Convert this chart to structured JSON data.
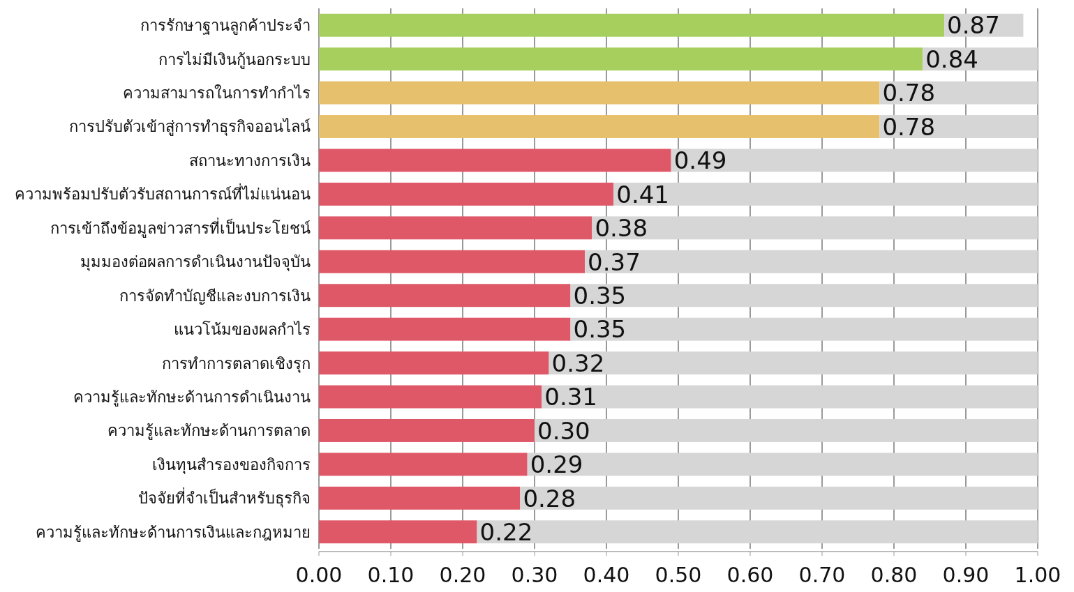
{
  "chart_data": {
    "type": "bar",
    "orientation": "horizontal",
    "stacked": true,
    "categories": [
      "การรักษาฐานลูกค้าประจำ",
      "การไม่มีเงินกู้นอกระบบ",
      "ความสามารถในการทำกำไร",
      "การปรับตัวเข้าสู่การทำธุรกิจออนไลน์",
      "สถานะทางการเงิน",
      "ความพร้อมปรับตัวรับสถานการณ์ที่ไม่แน่นอน",
      "การเข้าถึงข้อมูลข่าวสารที่เป็นประโยชน์",
      "มุมมองต่อผลการดำเนินงานปัจจุบัน",
      "การจัดทำบัญชีและงบการเงิน",
      "แนวโน้มของผลกำไร",
      "การทำการตลาดเชิงรุก",
      "ความรู้และทักษะด้านการดำเนินงาน",
      "ความรู้และทักษะด้านการตลาด",
      "เงินทุนสำรองของกิจการ",
      "ปัจจัยที่จำเป็นสำหรับธุรกิจ",
      "ความรู้และทักษะด้านการเงินและกฎหมาย"
    ],
    "series": [
      {
        "colors": [
          "#a6cf5e",
          "#a6cf5e",
          "#e6c06c",
          "#e6c06c",
          "#df5868",
          "#df5868",
          "#df5868",
          "#df5868",
          "#df5868",
          "#df5868",
          "#df5868",
          "#df5868",
          "#df5868",
          "#df5868",
          "#df5868",
          "#df5868"
        ],
        "values": [
          0.87,
          0.84,
          0.78,
          0.78,
          0.49,
          0.41,
          0.38,
          0.37,
          0.35,
          0.35,
          0.32,
          0.31,
          0.3,
          0.29,
          0.28,
          0.22
        ],
        "value_labels": [
          "0.87",
          "0.84",
          "0.78",
          "0.78",
          "0.49",
          "0.41",
          "0.38",
          "0.37",
          "0.35",
          "0.35",
          "0.32",
          "0.31",
          "0.30",
          "0.29",
          "0.28",
          "0.22"
        ]
      },
      {
        "color": "#d6d6d6",
        "values": [
          0.11,
          0.16,
          0.22,
          0.22,
          0.51,
          0.59,
          0.62,
          0.63,
          0.65,
          0.65,
          0.68,
          0.69,
          0.7,
          0.71,
          0.72,
          0.78
        ]
      }
    ],
    "xlim": [
      0,
      1
    ],
    "xticks": [
      {
        "value": 0,
        "label": "0.00"
      },
      {
        "value": 0.1,
        "label": "0.10"
      },
      {
        "value": 0.2,
        "label": "0.20"
      },
      {
        "value": 0.3,
        "label": "0.30"
      },
      {
        "value": 0.4,
        "label": "0.40"
      },
      {
        "value": 0.5,
        "label": "0.50"
      },
      {
        "value": 0.6,
        "label": "0.60"
      },
      {
        "value": 0.7,
        "label": "0.70"
      },
      {
        "value": 0.8,
        "label": "0.80"
      },
      {
        "value": 0.9,
        "label": "0.90"
      },
      {
        "value": 1,
        "label": "1.00"
      }
    ],
    "grid": "x"
  }
}
